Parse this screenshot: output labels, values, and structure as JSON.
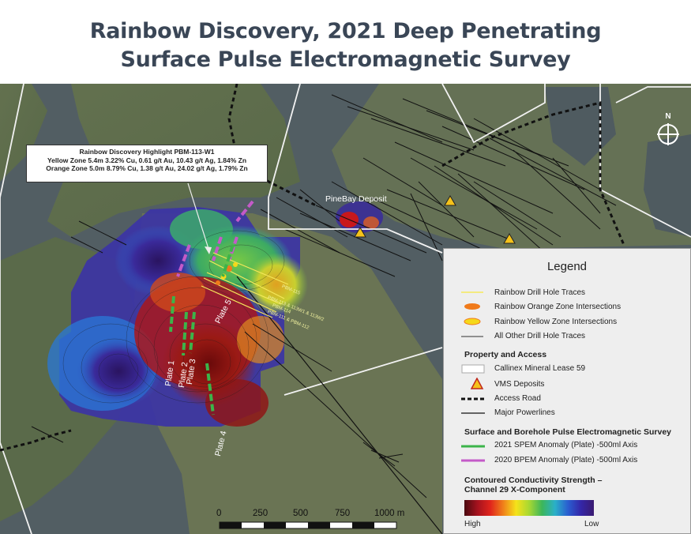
{
  "title": {
    "line1": "Rainbow Discovery, 2021 Deep Penetrating",
    "line2": "Surface Pulse Electromagnetic Survey"
  },
  "callout": {
    "heading": "Rainbow Discovery Highlight PBM-113-W1",
    "line1": "Yellow Zone 5.4m 3.22% Cu, 0.61 g/t Au, 10.43 g/t Ag, 1.84% Zn",
    "line2": "Orange Zone 5.0m 8.79% Cu, 1.38 g/t Au, 24.02 g/t Ag, 1.79% Zn"
  },
  "map_labels": {
    "deposit": "PineBay Deposit",
    "north": "N",
    "plates": [
      "Plate 1",
      "Plate 2",
      "Plate 3",
      "Plate 4",
      "Plate 5"
    ],
    "drill_holes": [
      "PBM-115",
      "PBM-113 & 113W1 & 113W2",
      "PBM-114",
      "PBM-111 & PBM-112"
    ]
  },
  "scale_bar": {
    "ticks": [
      "0",
      "250",
      "500",
      "750",
      "1000 m"
    ]
  },
  "legend": {
    "title": "Legend",
    "drill_items": [
      {
        "label": "Rainbow Drill Hole Traces"
      },
      {
        "label": "Rainbow Orange Zone Intersections"
      },
      {
        "label": "Rainbow Yellow Zone Intersections"
      },
      {
        "label": "All Other Drill Hole Traces"
      }
    ],
    "property_heading": "Property and Access",
    "property_items": [
      {
        "label": "Callinex Mineral Lease 59"
      },
      {
        "label": "VMS Deposits"
      },
      {
        "label": "Access Road"
      },
      {
        "label": "Major Powerlines"
      }
    ],
    "survey_heading": "Surface and Borehole Pulse Electromagnetic Survey",
    "survey_items": [
      {
        "label": "2021 SPEM Anomaly (Plate) -500ml Axis",
        "color": "#3cb44a"
      },
      {
        "label": "2020 BPEM Anomaly (Plate) -500ml Axis",
        "color": "#c45ac8"
      }
    ],
    "conductivity_heading_1": "Contoured Conductivity Strength –",
    "conductivity_heading_2": "Channel 29 X-Component",
    "high_label": "High",
    "low_label": "Low"
  },
  "colors": {
    "title": "#3a4656",
    "water": "#4e5b61",
    "land": "#5f6f52",
    "spem": "#3cb44a",
    "bpem": "#c45ac8",
    "drill": "#f5e85a",
    "orange_zone": "#f07a1a",
    "yellow_zone": "#f5d81a"
  }
}
